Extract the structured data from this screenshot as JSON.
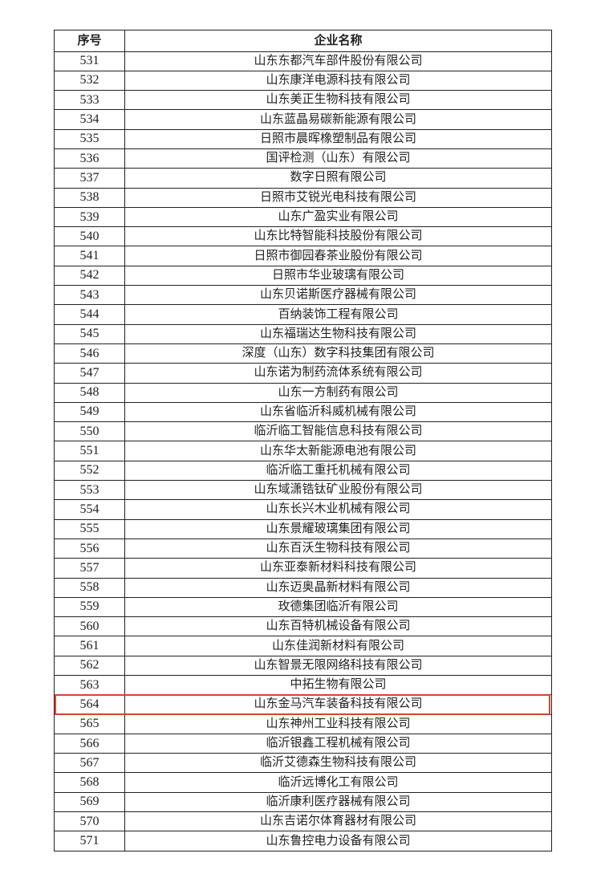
{
  "table": {
    "headers": [
      "序号",
      "企业名称"
    ],
    "highlighted_row": "564",
    "highlight_color": "#d9442e",
    "rows": [
      {
        "no": "531",
        "name": "山东东都汽车部件股份有限公司"
      },
      {
        "no": "532",
        "name": "山东康洋电源科技有限公司"
      },
      {
        "no": "533",
        "name": "山东美正生物科技有限公司"
      },
      {
        "no": "534",
        "name": "山东蓝晶易碳新能源有限公司"
      },
      {
        "no": "535",
        "name": "日照市晨晖橡塑制品有限公司"
      },
      {
        "no": "536",
        "name": "国评检测（山东）有限公司"
      },
      {
        "no": "537",
        "name": "数字日照有限公司"
      },
      {
        "no": "538",
        "name": "日照市艾锐光电科技有限公司"
      },
      {
        "no": "539",
        "name": "山东广盈实业有限公司"
      },
      {
        "no": "540",
        "name": "山东比特智能科技股份有限公司"
      },
      {
        "no": "541",
        "name": "日照市御园春茶业股份有限公司"
      },
      {
        "no": "542",
        "name": "日照市华业玻璃有限公司"
      },
      {
        "no": "543",
        "name": "山东贝诺斯医疗器械有限公司"
      },
      {
        "no": "544",
        "name": "百纳装饰工程有限公司"
      },
      {
        "no": "545",
        "name": "山东福瑞达生物科技有限公司"
      },
      {
        "no": "546",
        "name": "深度（山东）数字科技集团有限公司"
      },
      {
        "no": "547",
        "name": "山东诺为制药流体系统有限公司"
      },
      {
        "no": "548",
        "name": "山东一方制药有限公司"
      },
      {
        "no": "549",
        "name": "山东省临沂科威机械有限公司"
      },
      {
        "no": "550",
        "name": "临沂临工智能信息科技有限公司"
      },
      {
        "no": "551",
        "name": "山东华太新能源电池有限公司"
      },
      {
        "no": "552",
        "name": "临沂临工重托机械有限公司"
      },
      {
        "no": "553",
        "name": "山东域潇锆钛矿业股份有限公司"
      },
      {
        "no": "554",
        "name": "山东长兴木业机械有限公司"
      },
      {
        "no": "555",
        "name": "山东景耀玻璃集团有限公司"
      },
      {
        "no": "556",
        "name": "山东百沃生物科技有限公司"
      },
      {
        "no": "557",
        "name": "山东亚泰新材料科技有限公司"
      },
      {
        "no": "558",
        "name": "山东迈奥晶新材料有限公司"
      },
      {
        "no": "559",
        "name": "玫德集团临沂有限公司"
      },
      {
        "no": "560",
        "name": "山东百特机械设备有限公司"
      },
      {
        "no": "561",
        "name": "山东佳润新材料有限公司"
      },
      {
        "no": "562",
        "name": "山东智景无限网络科技有限公司"
      },
      {
        "no": "563",
        "name": "中拓生物有限公司"
      },
      {
        "no": "564",
        "name": "山东金马汽车装备科技有限公司"
      },
      {
        "no": "565",
        "name": "山东神州工业科技有限公司"
      },
      {
        "no": "566",
        "name": "临沂银鑫工程机械有限公司"
      },
      {
        "no": "567",
        "name": "临沂艾德森生物科技有限公司"
      },
      {
        "no": "568",
        "name": "临沂远博化工有限公司"
      },
      {
        "no": "569",
        "name": "临沂康利医疗器械有限公司"
      },
      {
        "no": "570",
        "name": "山东吉诺尔体育器材有限公司"
      },
      {
        "no": "571",
        "name": "山东鲁控电力设备有限公司"
      }
    ]
  }
}
